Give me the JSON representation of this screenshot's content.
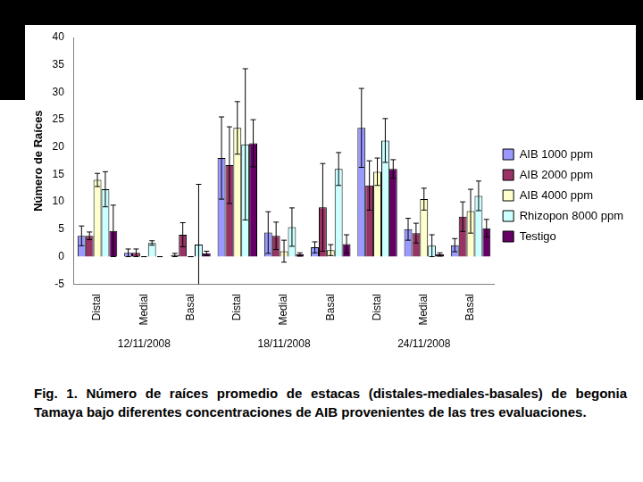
{
  "chart_data": {
    "type": "bar",
    "caption": "Fig. 1. Número de raíces promedio de estacas (distales-mediales-basales) de begonia Tamaya bajo diferentes concentraciones de AIB provenientes de las tres evaluaciones.",
    "y_label": "Número de Raíces",
    "categories": [
      "Distal",
      "Medial",
      "Basal",
      "Distal",
      "Medial",
      "Basal",
      "Distal",
      "Medial",
      "Basal"
    ],
    "group_labels": [
      "12/11/2008",
      "18/11/2008",
      "24/11/2008"
    ],
    "series": [
      {
        "name": "AIB 1000 ppm",
        "color": "#9999ff",
        "values": [
          3.8,
          0.7,
          0.3,
          18,
          4.4,
          1.7,
          23.5,
          5,
          2.1
        ],
        "errors": [
          1.8,
          0.7,
          0.3,
          7.5,
          3.8,
          1,
          7.2,
          2,
          1.2
        ]
      },
      {
        "name": "AIB 2000 ppm",
        "color": "#993366",
        "values": [
          3.8,
          0.7,
          4,
          16.7,
          3.8,
          9,
          13,
          4.3,
          7.3
        ],
        "errors": [
          0.7,
          0.7,
          2.2,
          7,
          2.5,
          8,
          4.5,
          1.8,
          2.7
        ]
      },
      {
        "name": "AIB 4000 ppm",
        "color": "#ffffcc",
        "values": [
          14,
          0,
          0,
          23.5,
          1,
          1.2,
          15.5,
          10.5,
          8.3
        ],
        "errors": [
          1.2,
          0,
          0,
          4.8,
          2,
          1,
          2.5,
          2,
          4
        ]
      },
      {
        "name": "Rhizopon 8000 ppm",
        "color": "#ccffff",
        "values": [
          12.3,
          2.5,
          2.2,
          20.5,
          5.4,
          16,
          21.2,
          2,
          11.1
        ],
        "errors": [
          3.2,
          0.4,
          11,
          13.8,
          3.5,
          3,
          4,
          2,
          2.7
        ]
      },
      {
        "name": "Testigo",
        "color": "#660066",
        "values": [
          4.7,
          0,
          0.6,
          20.7,
          0.4,
          2.3,
          16,
          0.4,
          5.2
        ],
        "errors": [
          4.7,
          0,
          0.4,
          4.3,
          0.3,
          1.7,
          1.7,
          0.3,
          1.6
        ]
      }
    ],
    "ylim": [
      -5,
      40
    ],
    "yticks": [
      -5,
      0,
      5,
      10,
      15,
      20,
      25,
      30,
      35,
      40
    ],
    "grid": false,
    "legend": "right"
  }
}
